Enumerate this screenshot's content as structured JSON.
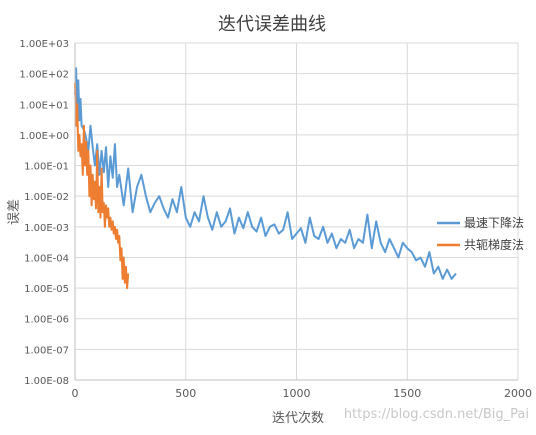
{
  "chart_data": {
    "type": "line",
    "title": "迭代误差曲线",
    "xlabel": "迭代次数",
    "ylabel": "误差",
    "x_scale": "linear",
    "y_scale": "log",
    "xlim": [
      0,
      2000
    ],
    "ylim": [
      1e-08,
      1000
    ],
    "x_ticks": [
      "0",
      "500",
      "1000",
      "1500",
      "2000"
    ],
    "y_ticks": [
      "1.00E-08",
      "1.00E-07",
      "1.00E-06",
      "1.00E-05",
      "1.00E-04",
      "1.00E-03",
      "1.00E-02",
      "1.00E-01",
      "1.00E+00",
      "1.00E+01",
      "1.00E+02",
      "1.00E+03"
    ],
    "grid": true,
    "legend_position": "right",
    "series": [
      {
        "name": "最速下降法",
        "color": "#5B9BD5",
        "x": [
          0,
          5,
          10,
          15,
          20,
          25,
          30,
          40,
          50,
          60,
          70,
          80,
          90,
          100,
          110,
          120,
          130,
          140,
          150,
          160,
          170,
          180,
          190,
          200,
          220,
          240,
          260,
          280,
          300,
          320,
          340,
          360,
          380,
          400,
          420,
          440,
          460,
          480,
          500,
          520,
          540,
          560,
          580,
          600,
          620,
          640,
          660,
          680,
          700,
          720,
          740,
          760,
          780,
          800,
          820,
          840,
          860,
          880,
          900,
          920,
          940,
          960,
          980,
          1000,
          1020,
          1040,
          1060,
          1080,
          1100,
          1120,
          1140,
          1160,
          1180,
          1200,
          1220,
          1240,
          1260,
          1280,
          1300,
          1320,
          1340,
          1360,
          1380,
          1400,
          1420,
          1440,
          1460,
          1480,
          1500,
          1520,
          1540,
          1560,
          1580,
          1600,
          1620,
          1640,
          1660,
          1680,
          1700,
          1720
        ],
        "y": [
          20,
          150,
          5,
          60,
          3,
          15,
          2,
          1.5,
          0.8,
          0.3,
          2,
          0.4,
          0.1,
          0.5,
          0.05,
          0.3,
          0.06,
          0.4,
          0.02,
          0.2,
          0.04,
          0.5,
          0.02,
          0.05,
          0.005,
          0.08,
          0.003,
          0.02,
          0.05,
          0.01,
          0.003,
          0.006,
          0.01,
          0.004,
          0.002,
          0.008,
          0.003,
          0.02,
          0.002,
          0.001,
          0.003,
          0.0015,
          0.01,
          0.002,
          0.0008,
          0.003,
          0.001,
          0.0015,
          0.004,
          0.0006,
          0.002,
          0.0009,
          0.003,
          0.001,
          0.0007,
          0.002,
          0.0005,
          0.001,
          0.0012,
          0.0006,
          0.0008,
          0.003,
          0.0004,
          0.0006,
          0.0009,
          0.0003,
          0.002,
          0.0005,
          0.0004,
          0.001,
          0.0003,
          0.0006,
          0.0002,
          0.0004,
          0.0003,
          0.0008,
          0.0002,
          0.0004,
          0.0003,
          0.0025,
          0.0002,
          0.0015,
          0.0003,
          0.00015,
          0.0004,
          0.0002,
          0.0001,
          0.0003,
          0.0002,
          0.00015,
          8e-05,
          0.0001,
          5e-05,
          0.00015,
          3e-05,
          5e-05,
          2e-05,
          4e-05,
          2e-05,
          3e-05
        ]
      },
      {
        "name": "共轭梯度法",
        "color": "#ED7D31",
        "x": [
          0,
          5,
          10,
          15,
          20,
          25,
          30,
          35,
          40,
          45,
          50,
          55,
          60,
          65,
          70,
          75,
          80,
          85,
          90,
          95,
          100,
          105,
          110,
          115,
          120,
          125,
          130,
          135,
          140,
          145,
          150,
          155,
          160,
          165,
          170,
          175,
          180,
          185,
          190,
          195,
          200,
          205,
          210,
          215,
          220,
          225,
          230,
          235,
          240
        ],
        "y": [
          50,
          2,
          10,
          0.3,
          1,
          0.2,
          0.5,
          0.05,
          2,
          0.1,
          0.6,
          0.05,
          0.3,
          0.01,
          0.1,
          0.005,
          0.05,
          0.008,
          0.03,
          0.004,
          0.3,
          0.003,
          0.02,
          0.002,
          0.08,
          0.003,
          0.006,
          0.001,
          0.005,
          0.002,
          0.004,
          0.001,
          0.002,
          0.0008,
          0.0015,
          0.0006,
          0.001,
          0.0004,
          0.0008,
          0.0003,
          0.0005,
          8e-05,
          0.0002,
          2e-05,
          0.0001,
          1.5e-05,
          5e-05,
          1e-05,
          3e-05
        ]
      }
    ],
    "watermark": "https://blog.csdn.net/Big_Pai"
  }
}
